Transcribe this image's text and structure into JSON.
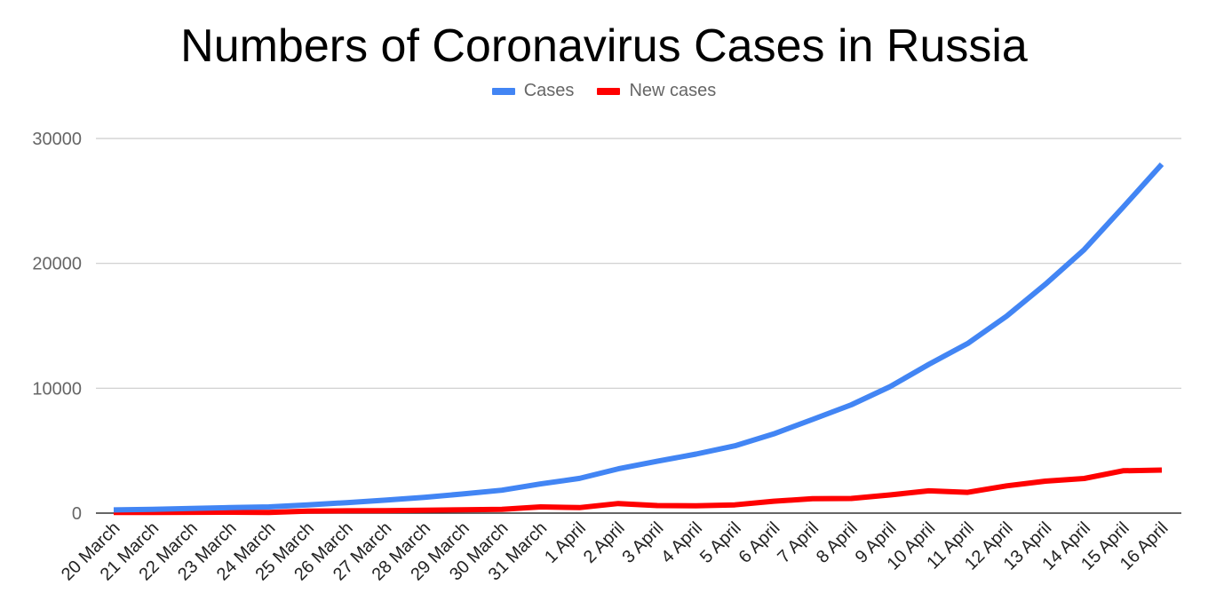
{
  "chart_data": {
    "type": "line",
    "title": "Numbers of Coronavirus Cases in Russia",
    "xlabel": "",
    "ylabel": "",
    "ylim": [
      0,
      30000
    ],
    "yticks": [
      "0",
      "10000",
      "20000",
      "30000"
    ],
    "grid": true,
    "legend_position": "top-center",
    "categories": [
      "20 March",
      "21 March",
      "22 March",
      "23 March",
      "24 March",
      "25 March",
      "26 March",
      "27 March",
      "28 March",
      "29 March",
      "30 March",
      "31 March",
      "1 April",
      "2 April",
      "3 April",
      "4 April",
      "5 April",
      "6 April",
      "7 April",
      "8 April",
      "9 April",
      "10 April",
      "11 April",
      "12 April",
      "13 April",
      "14 April",
      "15 April",
      "16 April"
    ],
    "series": [
      {
        "name": "Cases",
        "color": "#4285f4",
        "values": [
          253,
          306,
          367,
          438,
          495,
          658,
          840,
          1036,
          1264,
          1534,
          1836,
          2337,
          2777,
          3548,
          4149,
          4731,
          5389,
          6343,
          7497,
          8672,
          10131,
          11917,
          13584,
          15770,
          18328,
          21102,
          24490,
          27938
        ]
      },
      {
        "name": "New cases",
        "color": "#ff0000",
        "values": [
          54,
          53,
          61,
          71,
          57,
          163,
          182,
          196,
          228,
          270,
          302,
          501,
          440,
          771,
          601,
          582,
          658,
          954,
          1154,
          1175,
          1459,
          1786,
          1667,
          2186,
          2558,
          2774,
          3388,
          3448
        ]
      }
    ]
  }
}
